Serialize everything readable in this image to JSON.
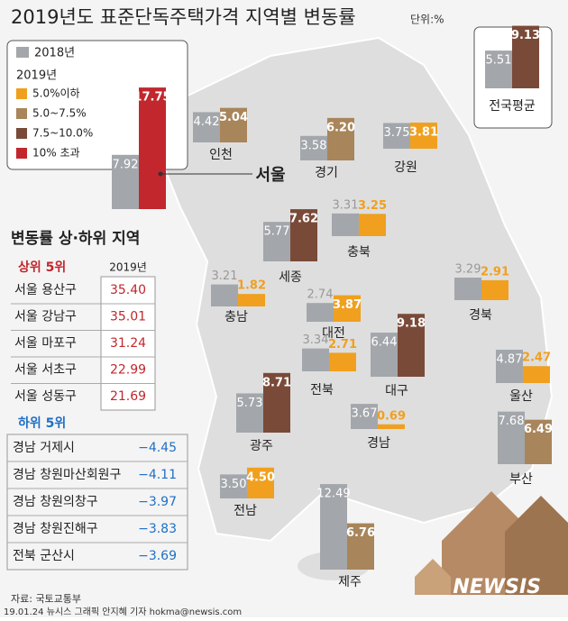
{
  "title": "2019년도 표준단독주택가격 지역별 변동률",
  "unit": "단위:%",
  "legend": {
    "series_2018": "2018년",
    "title_2019": "2019년",
    "color_2018": "#a3a7ab",
    "bins": [
      {
        "label": "5.0%이하",
        "color": "#f0a01e"
      },
      {
        "label": "5.0~7.5%",
        "color": "#a8855a"
      },
      {
        "label": "7.5~10.0%",
        "color": "#7a4a38"
      },
      {
        "label": "10% 초과",
        "color": "#c1272d"
      }
    ]
  },
  "national": {
    "name": "전국평균",
    "values": [
      5.51,
      9.13
    ],
    "value_labels": [
      "5.51",
      "9.13"
    ],
    "color": "#7a4a38"
  },
  "regions": [
    {
      "name": "서울",
      "values": [
        7.92,
        17.75
      ],
      "value_labels": [
        "7.92",
        "17.75"
      ],
      "color": "#c1272d"
    },
    {
      "name": "인천",
      "values": [
        4.42,
        5.04
      ],
      "value_labels": [
        "4.42",
        "5.04"
      ],
      "color": "#a8855a"
    },
    {
      "name": "경기",
      "values": [
        3.58,
        6.2
      ],
      "value_labels": [
        "3.58",
        "6.20"
      ],
      "color": "#a8855a"
    },
    {
      "name": "강원",
      "values": [
        3.75,
        3.81
      ],
      "value_labels": [
        "3.75",
        "3.81"
      ],
      "color": "#f0a01e"
    },
    {
      "name": "충북",
      "values": [
        3.31,
        3.25
      ],
      "value_labels": [
        "3.31",
        "3.25"
      ],
      "color": "#f0a01e"
    },
    {
      "name": "세종",
      "values": [
        5.77,
        7.62
      ],
      "value_labels": [
        "5.77",
        "7.62"
      ],
      "color": "#7a4a38"
    },
    {
      "name": "충남",
      "values": [
        3.21,
        1.82
      ],
      "value_labels": [
        "3.21",
        "1.82"
      ],
      "color": "#f0a01e"
    },
    {
      "name": "대전",
      "values": [
        2.74,
        3.87
      ],
      "value_labels": [
        "2.74",
        "3.87"
      ],
      "color": "#f0a01e"
    },
    {
      "name": "경북",
      "values": [
        3.29,
        2.91
      ],
      "value_labels": [
        "3.29",
        "2.91"
      ],
      "color": "#f0a01e"
    },
    {
      "name": "대구",
      "values": [
        6.44,
        9.18
      ],
      "value_labels": [
        "6.44",
        "9.18"
      ],
      "color": "#7a4a38"
    },
    {
      "name": "울산",
      "values": [
        4.87,
        2.47
      ],
      "value_labels": [
        "4.87",
        "2.47"
      ],
      "color": "#f0a01e"
    },
    {
      "name": "전북",
      "values": [
        3.34,
        2.71
      ],
      "value_labels": [
        "3.34",
        "2.71"
      ],
      "color": "#f0a01e"
    },
    {
      "name": "광주",
      "values": [
        5.73,
        8.71
      ],
      "value_labels": [
        "5.73",
        "8.71"
      ],
      "color": "#7a4a38"
    },
    {
      "name": "경남",
      "values": [
        3.67,
        0.69
      ],
      "value_labels": [
        "3.67",
        "0.69"
      ],
      "color": "#f0a01e"
    },
    {
      "name": "부산",
      "values": [
        7.68,
        6.49
      ],
      "value_labels": [
        "7.68",
        "6.49"
      ],
      "color": "#a8855a"
    },
    {
      "name": "전남",
      "values": [
        3.5,
        4.5
      ],
      "value_labels": [
        "3.50",
        "4.50"
      ],
      "color": "#f0a01e"
    },
    {
      "name": "제주",
      "values": [
        12.49,
        6.76
      ],
      "value_labels": [
        "12.49",
        "6.76"
      ],
      "color": "#a8855a"
    }
  ],
  "ranking": {
    "title": "변동률 상·하위 지역",
    "column": "2019년",
    "top_header": "상위 5위",
    "top": [
      [
        "서울 용산구",
        "35.40"
      ],
      [
        "서울 강남구",
        "35.01"
      ],
      [
        "서울 마포구",
        "31.24"
      ],
      [
        "서울 서초구",
        "22.99"
      ],
      [
        "서울 성동구",
        "21.69"
      ]
    ],
    "bottom_header": "하위 5위",
    "bottom": [
      [
        "경남 거제시",
        "−4.45"
      ],
      [
        "경남 창원마산회원구",
        "−4.11"
      ],
      [
        "경남 창원의창구",
        "−3.97"
      ],
      [
        "경남 창원진해구",
        "−3.83"
      ],
      [
        "전북 군산시",
        "−3.69"
      ]
    ]
  },
  "source": "자료: 국토교통부",
  "credit": "19.01.24 뉴시스 그래픽 안지혜 기자 hokma@newsis.com",
  "logo": "NEWSIS"
}
